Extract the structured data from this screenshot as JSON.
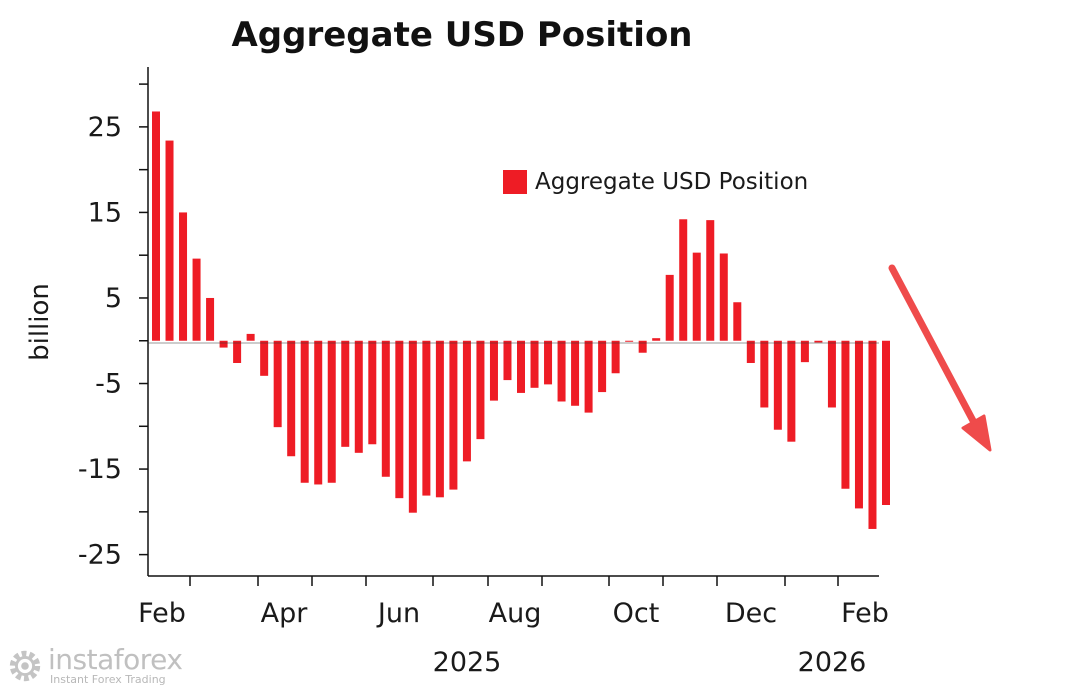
{
  "chart_data": {
    "type": "bar",
    "title": "Aggregate USD Position",
    "ylabel": "billion",
    "xlabel": "",
    "ylim": [
      -27.5,
      32
    ],
    "yticks": [
      25,
      15,
      5,
      -5,
      -15,
      -25
    ],
    "ytick_labels": [
      "25",
      "15",
      "5",
      "-5",
      "-15",
      "-25"
    ],
    "series": [
      {
        "name": "Aggregate USD Position",
        "color": "#ee1c25",
        "values": [
          26.8,
          23.4,
          15.0,
          9.6,
          5.0,
          -0.8,
          -2.6,
          0.8,
          -4.1,
          -10.1,
          -13.5,
          -16.6,
          -16.8,
          -16.6,
          -12.4,
          -13.1,
          -12.1,
          -15.9,
          -18.4,
          -20.1,
          -18.1,
          -18.3,
          -17.4,
          -14.1,
          -11.5,
          -7.0,
          -4.6,
          -6.1,
          -5.5,
          -5.1,
          -7.1,
          -7.6,
          -8.4,
          -6.0,
          -3.8,
          -0.1,
          -1.4,
          0.3,
          7.7,
          14.2,
          10.3,
          14.1,
          10.2,
          4.5,
          -2.6,
          -7.8,
          -10.4,
          -11.8,
          -2.5,
          -0.2,
          -7.8,
          -17.3,
          -19.6,
          -22.0,
          -19.2
        ]
      }
    ],
    "x_month_labels": [
      "Feb",
      "Apr",
      "Jun",
      "Aug",
      "Oct",
      "Dec",
      "Feb"
    ],
    "x_year_labels": [
      "2025",
      "2026"
    ],
    "legend": {
      "label": "Aggregate USD Position",
      "position": "top-right"
    },
    "annotation": "red arrow pointing down"
  },
  "branding": {
    "name": "instaforex",
    "tagline": "Instant Forex Trading"
  }
}
